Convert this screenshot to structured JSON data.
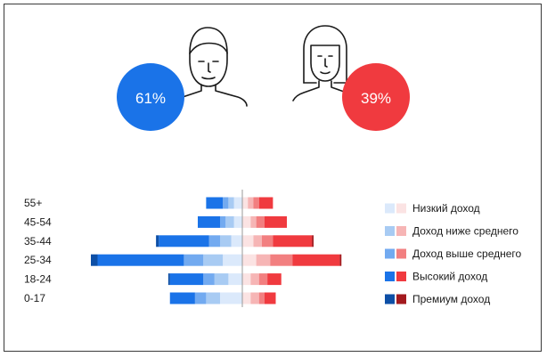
{
  "gender": {
    "male": {
      "label": "61%",
      "value": 61,
      "color": "#1a73e8",
      "icon": "man-portrait-icon"
    },
    "female": {
      "label": "39%",
      "value": 39,
      "color": "#f03a3f",
      "icon": "woman-portrait-icon"
    }
  },
  "chart_data": {
    "type": "bar",
    "orientation": "horizontal-stacked-diverging",
    "title": "",
    "xlabel": "",
    "ylabel": "",
    "categories": [
      "55+",
      "45-54",
      "35-44",
      "25-34",
      "18-24",
      "0-17"
    ],
    "units": "relative share (approximate)",
    "male": {
      "color_shades": [
        "#dbe9fb",
        "#a8cbf3",
        "#72aaf0",
        "#1a73e8",
        "#0d4fa6"
      ],
      "series": [
        {
          "name": "Низкий доход",
          "values": [
            1.5,
            1.5,
            2.0,
            3.5,
            2.5,
            4.0
          ]
        },
        {
          "name": "Доход  ниже среднего",
          "values": [
            1.0,
            1.5,
            2.0,
            3.5,
            2.5,
            2.5
          ]
        },
        {
          "name": "Доход  выше среднего",
          "values": [
            1.0,
            1.0,
            2.0,
            3.5,
            2.0,
            2.0
          ]
        },
        {
          "name": "Высокий доход",
          "values": [
            3.0,
            4.0,
            9.0,
            15.5,
            6.0,
            4.5
          ]
        },
        {
          "name": "Премиум доход",
          "values": [
            0,
            0,
            0.5,
            1.2,
            0.3,
            0
          ]
        }
      ]
    },
    "female": {
      "color_shades": [
        "#fbe3e3",
        "#f6b5b5",
        "#f27f80",
        "#f03a3f",
        "#a31a1e"
      ],
      "series": [
        {
          "name": "Низкий доход",
          "values": [
            1.0,
            1.5,
            2.0,
            2.5,
            1.5,
            1.5
          ]
        },
        {
          "name": "Доход  ниже среднего",
          "values": [
            1.0,
            1.0,
            1.5,
            2.5,
            1.5,
            1.5
          ]
        },
        {
          "name": "Доход  выше среднего",
          "values": [
            1.0,
            1.5,
            2.0,
            4.0,
            1.5,
            1.0
          ]
        },
        {
          "name": "Высокий доход",
          "values": [
            2.5,
            4.0,
            7.0,
            8.5,
            2.5,
            2.0
          ]
        },
        {
          "name": "Премиум доход",
          "values": [
            0,
            0,
            0.3,
            0.3,
            0,
            0
          ]
        }
      ]
    },
    "legend": {
      "placement": "right",
      "items": [
        {
          "label": "Низкий доход",
          "blue": "#dbe9fb",
          "red": "#fbe3e3"
        },
        {
          "label": "Доход  ниже среднего",
          "blue": "#a8cbf3",
          "red": "#f6b5b5"
        },
        {
          "label": "Доход  выше среднего",
          "blue": "#72aaf0",
          "red": "#f27f80"
        },
        {
          "label": "Высокий доход",
          "blue": "#1a73e8",
          "red": "#f03a3f"
        },
        {
          "label": "Премиум доход",
          "blue": "#0d4fa6",
          "red": "#a31a1e"
        }
      ]
    }
  }
}
